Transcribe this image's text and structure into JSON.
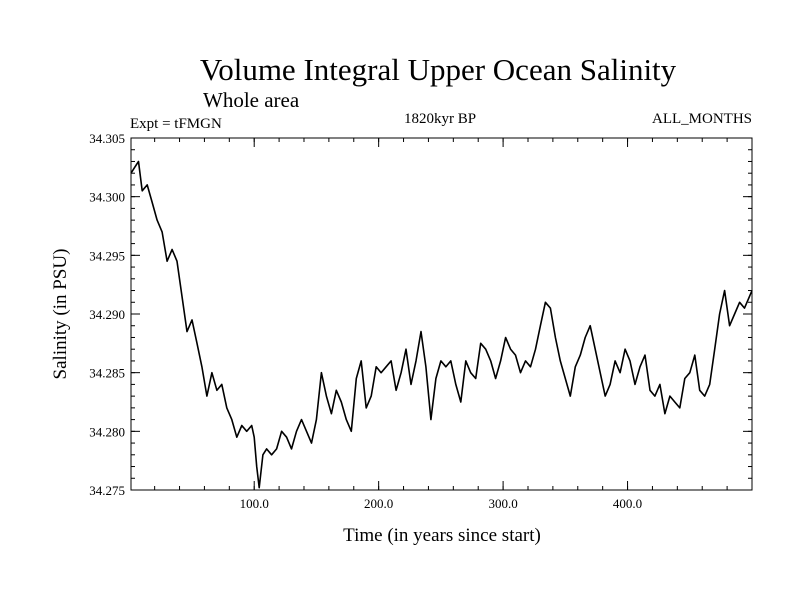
{
  "chart_data": {
    "type": "line",
    "title": "Volume Integral Upper Ocean Salinity",
    "subtitle": "Whole area",
    "expt_label": "Expt = tFMGN",
    "period_label": "1820kyr BP",
    "months_label": "ALL_MONTHS",
    "xlabel": "Time (in years since start)",
    "ylabel": "Salinity (in PSU)",
    "xlim": [
      1,
      500
    ],
    "ylim": [
      34.275,
      34.305
    ],
    "x_ticks": [
      {
        "value": 100,
        "label": "100.0"
      },
      {
        "value": 200,
        "label": "200.0"
      },
      {
        "value": 300,
        "label": "300.0"
      },
      {
        "value": 400,
        "label": "400.0"
      }
    ],
    "y_ticks": [
      {
        "value": 34.275,
        "label": "34.275"
      },
      {
        "value": 34.28,
        "label": "34.280"
      },
      {
        "value": 34.285,
        "label": "34.285"
      },
      {
        "value": 34.29,
        "label": "34.290"
      },
      {
        "value": 34.295,
        "label": "34.295"
      },
      {
        "value": 34.3,
        "label": "34.300"
      },
      {
        "value": 34.305,
        "label": "34.305"
      }
    ],
    "x_minor_step": 20,
    "y_minor_step": 0.001,
    "series": [
      {
        "name": "salinity",
        "x": [
          1,
          4,
          7,
          10,
          14,
          18,
          22,
          26,
          30,
          34,
          38,
          42,
          46,
          50,
          54,
          58,
          62,
          66,
          70,
          74,
          78,
          82,
          86,
          90,
          94,
          98,
          100,
          102,
          104,
          107,
          110,
          114,
          118,
          122,
          126,
          130,
          134,
          138,
          142,
          146,
          150,
          154,
          158,
          162,
          166,
          170,
          174,
          178,
          182,
          186,
          190,
          194,
          198,
          202,
          206,
          210,
          214,
          218,
          222,
          226,
          230,
          234,
          238,
          242,
          246,
          250,
          254,
          258,
          262,
          266,
          270,
          274,
          278,
          282,
          286,
          290,
          294,
          298,
          302,
          306,
          310,
          314,
          318,
          322,
          326,
          330,
          334,
          338,
          342,
          346,
          350,
          354,
          358,
          362,
          366,
          370,
          374,
          378,
          382,
          386,
          390,
          394,
          398,
          402,
          406,
          410,
          414,
          418,
          422,
          426,
          430,
          434,
          438,
          442,
          446,
          450,
          454,
          458,
          462,
          466,
          470,
          474,
          478,
          482,
          486,
          490,
          494,
          498,
          500
        ],
        "y": [
          34.302,
          34.3025,
          34.303,
          34.3005,
          34.301,
          34.2995,
          34.298,
          34.297,
          34.2945,
          34.2955,
          34.2945,
          34.2915,
          34.2885,
          34.2895,
          34.2875,
          34.2855,
          34.283,
          34.285,
          34.2835,
          34.284,
          34.282,
          34.281,
          34.2795,
          34.2805,
          34.28,
          34.2805,
          34.2795,
          34.277,
          34.2752,
          34.278,
          34.2785,
          34.278,
          34.2785,
          34.28,
          34.2795,
          34.2785,
          34.28,
          34.281,
          34.28,
          34.279,
          34.281,
          34.285,
          34.283,
          34.2815,
          34.2835,
          34.2825,
          34.281,
          34.28,
          34.2845,
          34.286,
          34.282,
          34.283,
          34.2855,
          34.285,
          34.2855,
          34.286,
          34.2835,
          34.285,
          34.287,
          34.284,
          34.286,
          34.2885,
          34.2855,
          34.281,
          34.2845,
          34.286,
          34.2855,
          34.286,
          34.284,
          34.2825,
          34.286,
          34.285,
          34.2845,
          34.2875,
          34.287,
          34.286,
          34.2845,
          34.286,
          34.288,
          34.287,
          34.2865,
          34.285,
          34.286,
          34.2855,
          34.287,
          34.289,
          34.291,
          34.2905,
          34.288,
          34.286,
          34.2845,
          34.283,
          34.2855,
          34.2865,
          34.288,
          34.289,
          34.287,
          34.285,
          34.283,
          34.284,
          34.286,
          34.285,
          34.287,
          34.286,
          34.284,
          34.2855,
          34.2865,
          34.2835,
          34.283,
          34.284,
          34.2815,
          34.283,
          34.2825,
          34.282,
          34.2845,
          34.285,
          34.2865,
          34.2835,
          34.283,
          34.284,
          34.287,
          34.29,
          34.292,
          34.289,
          34.29,
          34.291,
          34.2905,
          34.2915,
          34.292
        ]
      }
    ]
  }
}
